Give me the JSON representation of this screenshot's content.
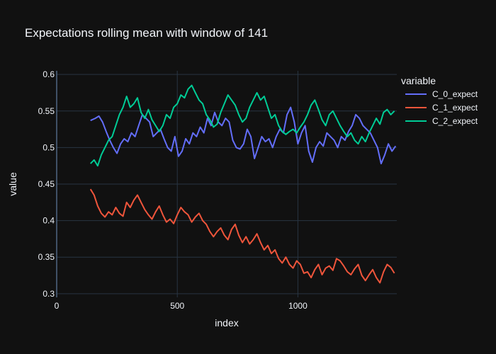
{
  "chart_data": {
    "type": "line",
    "title": "Expectations rolling mean with window of 141",
    "xlabel": "index",
    "ylabel": "value",
    "xlim": [
      0,
      1410
    ],
    "ylim": [
      0.295,
      0.605
    ],
    "xticks": [
      0,
      500,
      1000
    ],
    "xtick_labels": [
      "0",
      "500",
      "1000"
    ],
    "yticks": [
      0.3,
      0.35,
      0.4,
      0.45,
      0.5,
      0.55,
      0.6
    ],
    "ytick_labels": [
      "0.3",
      "0.35",
      "0.4",
      "0.45",
      "0.5",
      "0.55",
      "0.6"
    ],
    "grid": true,
    "legend": {
      "title": "variable",
      "placement": "right"
    },
    "series": [
      {
        "name": "C_0_expect",
        "color": "#636efa",
        "x": [
          140,
          160,
          175,
          190,
          205,
          220,
          235,
          250,
          265,
          280,
          295,
          310,
          325,
          340,
          355,
          370,
          385,
          400,
          415,
          430,
          445,
          460,
          475,
          490,
          505,
          520,
          535,
          550,
          565,
          580,
          595,
          610,
          625,
          640,
          655,
          670,
          685,
          700,
          715,
          730,
          745,
          760,
          775,
          790,
          805,
          820,
          835,
          850,
          865,
          880,
          895,
          910,
          925,
          940,
          955,
          970,
          985,
          1000,
          1015,
          1030,
          1045,
          1060,
          1075,
          1090,
          1105,
          1120,
          1135,
          1150,
          1165,
          1180,
          1195,
          1210,
          1225,
          1240,
          1255,
          1270,
          1285,
          1300,
          1315,
          1330,
          1345,
          1360,
          1375,
          1390,
          1405
        ],
        "y": [
          0.537,
          0.54,
          0.543,
          0.535,
          0.522,
          0.51,
          0.5,
          0.492,
          0.505,
          0.512,
          0.508,
          0.52,
          0.515,
          0.53,
          0.545,
          0.54,
          0.535,
          0.515,
          0.52,
          0.525,
          0.512,
          0.5,
          0.495,
          0.515,
          0.488,
          0.495,
          0.512,
          0.505,
          0.52,
          0.515,
          0.528,
          0.52,
          0.54,
          0.53,
          0.548,
          0.535,
          0.53,
          0.54,
          0.535,
          0.51,
          0.5,
          0.498,
          0.505,
          0.525,
          0.515,
          0.485,
          0.5,
          0.515,
          0.508,
          0.512,
          0.5,
          0.515,
          0.525,
          0.52,
          0.545,
          0.555,
          0.535,
          0.505,
          0.52,
          0.53,
          0.495,
          0.48,
          0.5,
          0.508,
          0.502,
          0.52,
          0.515,
          0.51,
          0.5,
          0.515,
          0.51,
          0.522,
          0.53,
          0.545,
          0.54,
          0.53,
          0.525,
          0.52,
          0.51,
          0.5,
          0.478,
          0.49,
          0.505,
          0.495,
          0.502
        ]
      },
      {
        "name": "C_1_expect",
        "color": "#ef553b",
        "x": [
          140,
          155,
          170,
          185,
          200,
          215,
          230,
          245,
          260,
          275,
          290,
          305,
          320,
          335,
          350,
          365,
          380,
          395,
          410,
          425,
          440,
          455,
          470,
          485,
          500,
          515,
          530,
          545,
          560,
          575,
          590,
          605,
          620,
          635,
          650,
          665,
          680,
          695,
          710,
          725,
          740,
          755,
          770,
          785,
          800,
          815,
          830,
          845,
          860,
          875,
          890,
          905,
          920,
          935,
          950,
          965,
          980,
          995,
          1010,
          1025,
          1040,
          1055,
          1070,
          1085,
          1100,
          1115,
          1130,
          1145,
          1160,
          1175,
          1190,
          1205,
          1220,
          1235,
          1250,
          1265,
          1280,
          1295,
          1310,
          1325,
          1340,
          1355,
          1370,
          1385,
          1400
        ],
        "y": [
          0.443,
          0.435,
          0.42,
          0.41,
          0.405,
          0.412,
          0.408,
          0.418,
          0.41,
          0.406,
          0.425,
          0.418,
          0.428,
          0.435,
          0.425,
          0.415,
          0.408,
          0.402,
          0.412,
          0.42,
          0.408,
          0.398,
          0.402,
          0.396,
          0.408,
          0.418,
          0.412,
          0.408,
          0.398,
          0.405,
          0.41,
          0.4,
          0.395,
          0.385,
          0.378,
          0.385,
          0.39,
          0.38,
          0.374,
          0.388,
          0.395,
          0.38,
          0.37,
          0.378,
          0.368,
          0.374,
          0.382,
          0.37,
          0.36,
          0.366,
          0.355,
          0.36,
          0.348,
          0.342,
          0.35,
          0.34,
          0.335,
          0.345,
          0.34,
          0.328,
          0.33,
          0.322,
          0.333,
          0.34,
          0.326,
          0.335,
          0.338,
          0.332,
          0.348,
          0.345,
          0.338,
          0.33,
          0.326,
          0.334,
          0.34,
          0.325,
          0.318,
          0.326,
          0.333,
          0.322,
          0.315,
          0.33,
          0.34,
          0.336,
          0.328
        ]
      },
      {
        "name": "C_2_expect",
        "color": "#00cc96",
        "x": [
          140,
          155,
          170,
          185,
          200,
          215,
          230,
          245,
          260,
          275,
          290,
          305,
          320,
          335,
          350,
          365,
          380,
          395,
          410,
          425,
          440,
          455,
          470,
          485,
          500,
          515,
          530,
          545,
          560,
          575,
          590,
          605,
          620,
          635,
          650,
          665,
          680,
          695,
          710,
          725,
          740,
          755,
          770,
          785,
          800,
          815,
          830,
          845,
          860,
          875,
          890,
          905,
          920,
          935,
          950,
          965,
          980,
          995,
          1010,
          1025,
          1040,
          1055,
          1070,
          1085,
          1100,
          1115,
          1130,
          1145,
          1160,
          1175,
          1190,
          1205,
          1220,
          1235,
          1250,
          1265,
          1280,
          1295,
          1310,
          1325,
          1340,
          1355,
          1370,
          1385,
          1400
        ],
        "y": [
          0.478,
          0.483,
          0.475,
          0.49,
          0.5,
          0.51,
          0.515,
          0.53,
          0.545,
          0.555,
          0.57,
          0.555,
          0.56,
          0.568,
          0.548,
          0.54,
          0.552,
          0.538,
          0.53,
          0.522,
          0.53,
          0.545,
          0.54,
          0.555,
          0.56,
          0.572,
          0.568,
          0.58,
          0.585,
          0.575,
          0.565,
          0.56,
          0.545,
          0.538,
          0.528,
          0.532,
          0.548,
          0.56,
          0.572,
          0.565,
          0.558,
          0.545,
          0.535,
          0.54,
          0.555,
          0.565,
          0.575,
          0.565,
          0.57,
          0.555,
          0.54,
          0.545,
          0.53,
          0.522,
          0.518,
          0.522,
          0.525,
          0.52,
          0.528,
          0.535,
          0.545,
          0.558,
          0.565,
          0.552,
          0.538,
          0.53,
          0.545,
          0.55,
          0.54,
          0.53,
          0.522,
          0.515,
          0.52,
          0.51,
          0.505,
          0.515,
          0.508,
          0.52,
          0.53,
          0.54,
          0.532,
          0.548,
          0.552,
          0.545,
          0.55
        ]
      }
    ]
  }
}
